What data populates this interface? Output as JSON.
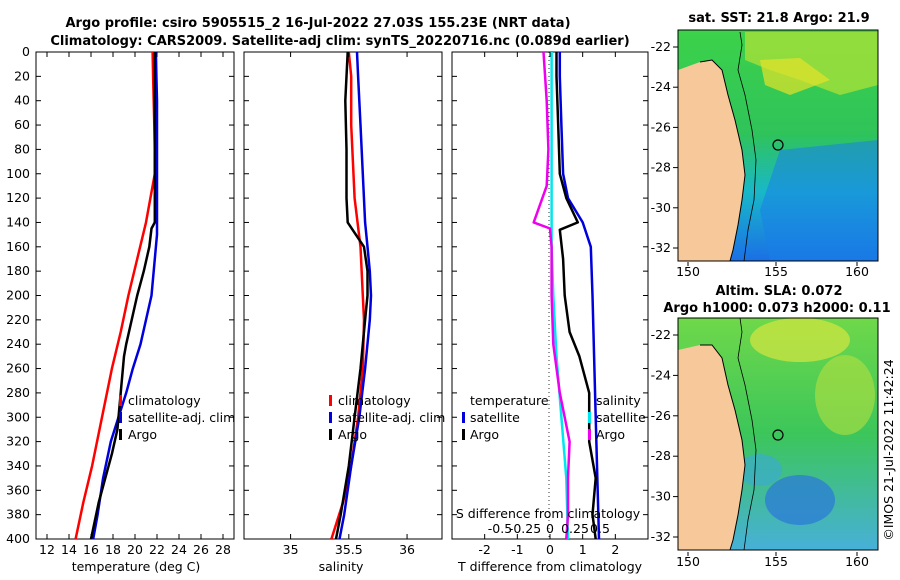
{
  "header": {
    "title_line1": "Argo profile: csiro 5905515_2 16-Jul-2022 27.03S 155.23E (NRT data)",
    "title_line2": "Climatology: CARS2009. Satellite-adj clim: synTS_20220716.nc (0.089d earlier)"
  },
  "colors": {
    "climatology": "#ff0000",
    "satellite": "#0000dd",
    "argo": "#000000",
    "magenta": "#ee00ee",
    "cyan": "#00e6ee",
    "land": "#f7c89a"
  },
  "chart_data": [
    {
      "type": "line",
      "panel": "temperature",
      "xlabel": "temperature (deg C)",
      "ylabel": "depth",
      "xlim": [
        11,
        29
      ],
      "ylim": [
        400,
        0
      ],
      "xticks": [
        12,
        14,
        16,
        18,
        20,
        22,
        24,
        26,
        28
      ],
      "yticks": [
        0,
        20,
        40,
        60,
        80,
        100,
        120,
        140,
        160,
        180,
        200,
        220,
        240,
        260,
        280,
        300,
        320,
        340,
        360,
        380,
        400
      ],
      "legend": [
        "climatology",
        "satellite-adj. clim",
        "Argo"
      ],
      "series": [
        {
          "name": "climatology",
          "color": "#ff0000",
          "x": [
            21.6,
            21.65,
            21.7,
            21.75,
            21.8,
            21.8,
            21.0,
            20.2,
            19.4,
            18.7,
            17.9,
            17.0,
            16.1,
            15.3,
            14.6
          ],
          "depth": [
            0,
            20,
            40,
            60,
            80,
            100,
            140,
            170,
            200,
            230,
            260,
            300,
            340,
            370,
            400
          ]
        },
        {
          "name": "satellite-adj. clim",
          "color": "#0000dd",
          "x": [
            21.9,
            21.95,
            22.0,
            22.0,
            22.0,
            22.0,
            22.0,
            21.8,
            21.5,
            21.0,
            20.5,
            19.8,
            19.2,
            18.5,
            17.8,
            17.1,
            16.6,
            16.2
          ],
          "depth": [
            0,
            20,
            40,
            80,
            120,
            140,
            150,
            170,
            200,
            220,
            240,
            260,
            280,
            300,
            320,
            350,
            380,
            400
          ]
        },
        {
          "name": "Argo",
          "color": "#000000",
          "x": [
            21.8,
            21.8,
            21.8,
            21.8,
            21.8,
            21.5,
            21.3,
            20.8,
            20.2,
            19.7,
            19.2,
            19.0,
            18.8,
            18.6,
            18.4,
            17.9,
            17.3,
            16.7,
            16.0
          ],
          "depth": [
            0,
            40,
            80,
            120,
            140,
            145,
            160,
            180,
            200,
            220,
            240,
            250,
            270,
            290,
            310,
            330,
            350,
            370,
            400
          ]
        }
      ]
    },
    {
      "type": "line",
      "panel": "salinity",
      "xlabel": "salinity",
      "xlim": [
        34.6,
        36.3
      ],
      "ylim": [
        400,
        0
      ],
      "xticks": [
        35,
        35.5,
        36
      ],
      "legend": [
        "climatology",
        "satellite-adj. clim",
        "Argo"
      ],
      "series": [
        {
          "name": "climatology",
          "color": "#ff0000",
          "x": [
            35.5,
            35.52,
            35.52,
            35.55,
            35.6,
            35.62,
            35.63,
            35.62,
            35.58,
            35.52,
            35.45,
            35.35
          ],
          "depth": [
            0,
            20,
            60,
            120,
            160,
            200,
            220,
            260,
            300,
            340,
            370,
            400
          ]
        },
        {
          "name": "satellite-adj. clim",
          "color": "#0000dd",
          "x": [
            35.57,
            35.58,
            35.6,
            35.62,
            35.64,
            35.66,
            35.68,
            35.69,
            35.68,
            35.64,
            35.59,
            35.52,
            35.46,
            35.42
          ],
          "depth": [
            0,
            20,
            60,
            100,
            140,
            160,
            180,
            200,
            220,
            260,
            300,
            340,
            380,
            400
          ]
        },
        {
          "name": "Argo",
          "color": "#000000",
          "x": [
            35.49,
            35.47,
            35.48,
            35.48,
            35.49,
            35.56,
            35.63,
            35.66,
            35.66,
            35.64,
            35.6,
            35.55,
            35.5,
            35.43,
            35.39
          ],
          "depth": [
            0,
            40,
            80,
            120,
            140,
            150,
            160,
            180,
            200,
            220,
            260,
            300,
            340,
            380,
            400
          ]
        }
      ]
    },
    {
      "type": "line",
      "panel": "differences",
      "xlabel": "T difference from climatology",
      "xlabel_top": "S difference from climatology",
      "xlim": [
        -3,
        3
      ],
      "ylim": [
        400,
        0
      ],
      "xticks": [
        -2,
        -1,
        0,
        1,
        2
      ],
      "xticks_salinity": [
        -0.5,
        -0.25,
        0,
        0.25,
        0.5
      ],
      "legend": {
        "temperature_header": "temperature",
        "salinity_header": "salinity",
        "entries": [
          "satellite",
          "Argo"
        ]
      },
      "series": [
        {
          "name": "temperature satellite",
          "color": "#0000dd",
          "x": [
            0.3,
            0.3,
            0.35,
            0.4,
            0.55,
            1.0,
            1.25,
            1.3,
            1.35,
            1.4,
            1.5
          ],
          "depth": [
            0,
            20,
            60,
            100,
            120,
            140,
            160,
            200,
            250,
            300,
            400
          ]
        },
        {
          "name": "temperature Argo",
          "color": "#000000",
          "x": [
            0.2,
            0.2,
            0.25,
            0.3,
            0.5,
            0.85,
            0.3,
            0.4,
            0.45,
            0.6,
            0.9,
            1.2,
            1.2,
            1.4,
            1.3,
            1.4
          ],
          "depth": [
            0,
            20,
            60,
            100,
            120,
            140,
            146,
            170,
            200,
            230,
            250,
            280,
            320,
            350,
            380,
            400
          ]
        },
        {
          "name": "salinity satellite",
          "color": "#00e6ee",
          "x": [
            0.05,
            0.05,
            0.05,
            0.05,
            0.1,
            0.2,
            0.35,
            0.5,
            0.55
          ],
          "depth": [
            0,
            60,
            120,
            160,
            200,
            250,
            300,
            350,
            400
          ]
        },
        {
          "name": "salinity Argo",
          "color": "#ee00ee",
          "x": [
            -0.2,
            -0.1,
            -0.05,
            -0.1,
            -0.5,
            0.0,
            0.05,
            0.05,
            0.1,
            0.3,
            0.6,
            0.55,
            0.55,
            0.5
          ],
          "depth": [
            0,
            40,
            80,
            110,
            140,
            145,
            160,
            200,
            240,
            280,
            320,
            350,
            380,
            400
          ]
        }
      ]
    }
  ],
  "maps": {
    "sst": {
      "title": "sat. SST: 21.8 Argo: 21.9",
      "lat_ticks": [
        "-22",
        "-24",
        "-26",
        "-28",
        "-30",
        "-32"
      ],
      "lon_ticks": [
        "150",
        "155",
        "160"
      ]
    },
    "sla": {
      "title_line1": "Altim. SLA: 0.072",
      "title_line2": "Argo h1000: 0.073 h2000: 0.11",
      "lat_ticks": [
        "-22",
        "-24",
        "-26",
        "-28",
        "-30",
        "-32"
      ],
      "lon_ticks": [
        "150",
        "155",
        "160"
      ]
    }
  },
  "footer": {
    "credit": "©IMOS 21-Jul-2022 11:42:24"
  }
}
